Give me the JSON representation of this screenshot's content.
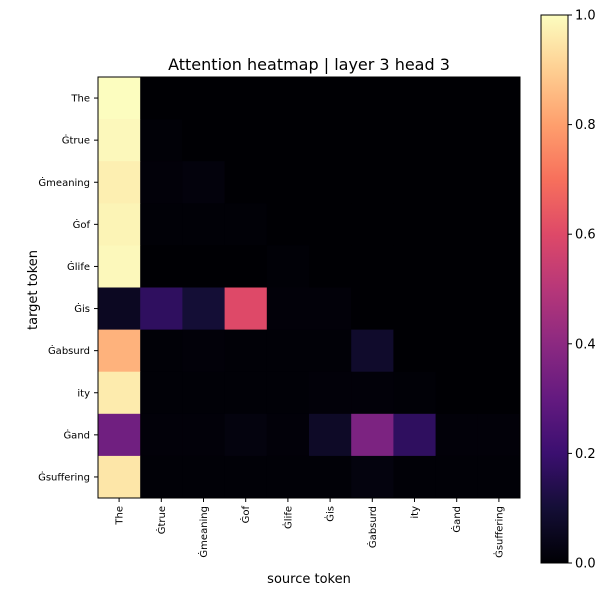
{
  "chart_data": {
    "type": "heatmap",
    "title": "Attention heatmap | layer 3 head 3",
    "xlabel": "source token",
    "ylabel": "target token",
    "x_tokens": [
      "The",
      "Ġtrue",
      "Ġmeaning",
      "Ġof",
      "Ġlife",
      "Ġis",
      "Ġabsurd",
      "ity",
      "Ġand",
      "Ġsuffering"
    ],
    "y_tokens": [
      "The",
      "Ġtrue",
      "Ġmeaning",
      "Ġof",
      "Ġlife",
      "Ġis",
      "Ġabsurd",
      "ity",
      "Ġand",
      "Ġsuffering"
    ],
    "values": [
      [
        1.0,
        0,
        0,
        0,
        0,
        0,
        0,
        0,
        0,
        0
      ],
      [
        0.99,
        0.005,
        0,
        0,
        0,
        0,
        0,
        0,
        0,
        0
      ],
      [
        0.97,
        0.01,
        0.015,
        0,
        0,
        0,
        0,
        0,
        0,
        0
      ],
      [
        0.98,
        0.005,
        0.005,
        0.005,
        0,
        0,
        0,
        0,
        0,
        0
      ],
      [
        0.99,
        0,
        0,
        0,
        0.005,
        0,
        0,
        0,
        0,
        0
      ],
      [
        0.06,
        0.17,
        0.1,
        0.6,
        0.01,
        0.01,
        0,
        0,
        0,
        0
      ],
      [
        0.84,
        0.005,
        0.01,
        0.005,
        0.005,
        0.005,
        0.08,
        0,
        0,
        0
      ],
      [
        0.96,
        0.005,
        0.005,
        0.005,
        0.005,
        0.01,
        0.01,
        0.005,
        0,
        0
      ],
      [
        0.33,
        0.01,
        0.01,
        0.02,
        0.01,
        0.07,
        0.36,
        0.17,
        0.01,
        0.01
      ],
      [
        0.95,
        0.005,
        0.005,
        0.005,
        0.005,
        0.005,
        0.02,
        0.005,
        0.005,
        0.005
      ]
    ],
    "colorbar": {
      "colormap": "magma",
      "range": [
        0.0,
        1.0
      ],
      "ticks": [
        "0.0",
        "0.2",
        "0.4",
        "0.6",
        "0.8",
        "1.0"
      ]
    }
  }
}
